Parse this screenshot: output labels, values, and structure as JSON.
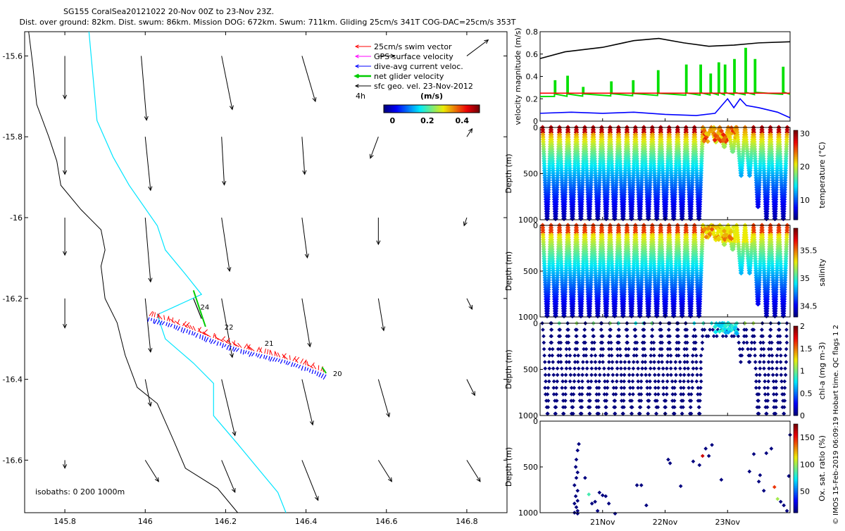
{
  "header": {
    "line1": "SG155 CoralSea20121022 20-Nov 00Z to 23-Nov 23Z.",
    "line2": "Dist. over ground: 82km. Dist. swum: 86km. Mission DOG: 672km. Swum: 711km. Gliding 25cm/s 341T COG-DAC=25cm/s 353T"
  },
  "credit": "© IMOS 15-Feb-2019 06:09:19 Hobart time. QC flags 1  2",
  "colors": {
    "swim": "#ff0000",
    "gps": "#ff00ff",
    "dac": "#0000ff",
    "net": "#00cc00",
    "geo": "#000000",
    "isobath200": "#00e5ff",
    "isobath1000": "#000000"
  },
  "chart_data": [
    {
      "type": "map",
      "name": "track-map",
      "xlim": [
        145.7,
        146.9
      ],
      "ylim": [
        -16.73,
        -15.54
      ],
      "xticks": [
        "145.8",
        "146",
        "146.2",
        "146.4",
        "146.6",
        "146.8"
      ],
      "xtick_values": [
        145.8,
        146.0,
        146.2,
        146.4,
        146.6,
        146.8
      ],
      "yticks": [
        "-15.6",
        "-15.8",
        "-16",
        "-16.2",
        "-16.4",
        "-16.6"
      ],
      "ytick_values": [
        -15.6,
        -15.8,
        -16.0,
        -16.2,
        -16.4,
        -16.6
      ],
      "legend": {
        "entries": [
          "25cm/s swim vector",
          "GPS surface velocity",
          "dive-avg current veloc.",
          "net glider velocity",
          "sfc geo. vel. 23-Nov-2012"
        ],
        "scale_label": "4h",
        "colorbar_title": "(m/s)",
        "colorbar_ticks": [
          "0",
          "0.2",
          "0.4"
        ],
        "colorbar_tick_values": [
          0,
          0.2,
          0.4
        ],
        "colorbar_range": [
          -0.05,
          0.5
        ]
      },
      "isobaths_label": "isobaths: 0   200  1000m",
      "track_labels": [
        {
          "text": "24",
          "lon": 146.13,
          "lat": -16.22
        },
        {
          "text": "22",
          "lon": 146.19,
          "lat": -16.27
        },
        {
          "text": "21",
          "lon": 146.29,
          "lat": -16.31
        },
        {
          "text": "20",
          "lon": 146.46,
          "lat": -16.385
        }
      ],
      "track_start": {
        "lon": 146.45,
        "lat": -16.385
      },
      "track_end": {
        "lon": 146.01,
        "lat": -16.245
      },
      "isobath_0": [
        [
          145.71,
          -15.54
        ],
        [
          145.72,
          -15.62
        ],
        [
          145.73,
          -15.72
        ],
        [
          145.76,
          -15.8
        ],
        [
          145.78,
          -15.86
        ],
        [
          145.79,
          -15.92
        ],
        [
          145.84,
          -15.98
        ],
        [
          145.89,
          -16.03
        ],
        [
          145.9,
          -16.08
        ],
        [
          145.89,
          -16.12
        ],
        [
          145.9,
          -16.2
        ],
        [
          145.93,
          -16.26
        ],
        [
          145.95,
          -16.34
        ],
        [
          145.98,
          -16.42
        ],
        [
          146.03,
          -16.46
        ],
        [
          146.07,
          -16.55
        ],
        [
          146.1,
          -16.62
        ],
        [
          146.18,
          -16.67
        ],
        [
          146.23,
          -16.73
        ]
      ],
      "isobath_200": [
        [
          145.86,
          -15.54
        ],
        [
          145.87,
          -15.65
        ],
        [
          145.88,
          -15.76
        ],
        [
          145.92,
          -15.85
        ],
        [
          145.96,
          -15.92
        ],
        [
          146.03,
          -16.02
        ],
        [
          146.05,
          -16.08
        ],
        [
          146.1,
          -16.14
        ],
        [
          146.14,
          -16.19
        ],
        [
          146.03,
          -16.24
        ],
        [
          146.05,
          -16.3
        ],
        [
          146.12,
          -16.36
        ],
        [
          146.17,
          -16.41
        ],
        [
          146.17,
          -16.49
        ],
        [
          146.23,
          -16.56
        ],
        [
          146.28,
          -16.62
        ],
        [
          146.33,
          -16.68
        ],
        [
          146.35,
          -16.73
        ]
      ],
      "geo_vectors": [
        {
          "lon": 145.8,
          "lat": -15.6,
          "u": 0.0,
          "v": -0.16
        },
        {
          "lon": 145.99,
          "lat": -15.6,
          "u": 0.02,
          "v": -0.24
        },
        {
          "lon": 146.19,
          "lat": -15.6,
          "u": 0.04,
          "v": -0.2
        },
        {
          "lon": 146.39,
          "lat": -15.6,
          "u": 0.05,
          "v": -0.17
        },
        {
          "lon": 146.58,
          "lat": -15.6,
          "u": 0.06,
          "v": 0.0
        },
        {
          "lon": 146.8,
          "lat": -15.6,
          "u": 0.08,
          "v": 0.06
        },
        {
          "lon": 145.8,
          "lat": -15.8,
          "u": 0.0,
          "v": -0.14
        },
        {
          "lon": 146.0,
          "lat": -15.8,
          "u": 0.02,
          "v": -0.2
        },
        {
          "lon": 146.19,
          "lat": -15.8,
          "u": 0.01,
          "v": -0.18
        },
        {
          "lon": 146.39,
          "lat": -15.8,
          "u": 0.01,
          "v": -0.14
        },
        {
          "lon": 146.58,
          "lat": -15.8,
          "u": -0.03,
          "v": -0.08
        },
        {
          "lon": 146.8,
          "lat": -15.8,
          "u": 0.02,
          "v": 0.03
        },
        {
          "lon": 145.8,
          "lat": -16.0,
          "u": 0.0,
          "v": -0.14
        },
        {
          "lon": 146.0,
          "lat": -16.0,
          "u": 0.02,
          "v": -0.24
        },
        {
          "lon": 146.19,
          "lat": -16.0,
          "u": 0.03,
          "v": -0.2
        },
        {
          "lon": 146.39,
          "lat": -16.0,
          "u": 0.02,
          "v": -0.15
        },
        {
          "lon": 146.58,
          "lat": -16.0,
          "u": 0.0,
          "v": -0.1
        },
        {
          "lon": 146.8,
          "lat": -16.0,
          "u": -0.01,
          "v": -0.03
        },
        {
          "lon": 145.8,
          "lat": -16.2,
          "u": 0.0,
          "v": -0.11
        },
        {
          "lon": 146.0,
          "lat": -16.2,
          "u": 0.02,
          "v": -0.2
        },
        {
          "lon": 146.19,
          "lat": -16.2,
          "u": 0.04,
          "v": -0.22
        },
        {
          "lon": 146.39,
          "lat": -16.2,
          "u": 0.03,
          "v": -0.18
        },
        {
          "lon": 146.58,
          "lat": -16.2,
          "u": 0.02,
          "v": -0.12
        },
        {
          "lon": 146.8,
          "lat": -16.2,
          "u": 0.02,
          "v": -0.04
        },
        {
          "lon": 146.0,
          "lat": -16.4,
          "u": 0.02,
          "v": -0.1
        },
        {
          "lon": 146.19,
          "lat": -16.4,
          "u": 0.05,
          "v": -0.21
        },
        {
          "lon": 146.39,
          "lat": -16.4,
          "u": 0.04,
          "v": -0.17
        },
        {
          "lon": 146.58,
          "lat": -16.4,
          "u": 0.04,
          "v": -0.14
        },
        {
          "lon": 146.8,
          "lat": -16.4,
          "u": 0.03,
          "v": -0.06
        },
        {
          "lon": 145.8,
          "lat": -16.6,
          "u": 0.0,
          "v": -0.03
        },
        {
          "lon": 146.0,
          "lat": -16.6,
          "u": 0.05,
          "v": -0.08
        },
        {
          "lon": 146.19,
          "lat": -16.6,
          "u": 0.05,
          "v": -0.12
        },
        {
          "lon": 146.39,
          "lat": -16.6,
          "u": 0.06,
          "v": -0.15
        },
        {
          "lon": 146.58,
          "lat": -16.6,
          "u": 0.05,
          "v": -0.08
        },
        {
          "lon": 146.8,
          "lat": -16.6,
          "u": 0.05,
          "v": -0.08
        }
      ]
    },
    {
      "type": "line",
      "name": "velocity-panel",
      "ylabel": "velocity magnitude (m/s)",
      "xlim": [
        20.0,
        24.0
      ],
      "ylim": [
        0,
        0.8
      ],
      "yticks": [
        "0",
        "0.2",
        "0.4",
        "0.6",
        "0.8"
      ],
      "ytick_values": [
        0,
        0.2,
        0.4,
        0.6,
        0.8
      ],
      "xticks": [
        "21Nov",
        "22Nov",
        "23Nov"
      ],
      "xtick_values": [
        21.0,
        22.0,
        23.0
      ],
      "series": [
        {
          "color": "#000000",
          "x": [
            20.0,
            20.4,
            21.0,
            21.5,
            21.9,
            22.3,
            22.7,
            23.1,
            23.5,
            24.0
          ],
          "values": [
            0.56,
            0.62,
            0.66,
            0.72,
            0.74,
            0.7,
            0.67,
            0.68,
            0.7,
            0.71
          ]
        },
        {
          "color": "#ff0000",
          "x": [
            20.0,
            24.0
          ],
          "values": [
            0.25,
            0.25
          ]
        },
        {
          "color": "#0000ff",
          "x": [
            20.0,
            20.5,
            21.0,
            21.5,
            22.0,
            22.5,
            22.8,
            23.0,
            23.1,
            23.2,
            23.3,
            23.5,
            23.8,
            24.0
          ],
          "values": [
            0.07,
            0.08,
            0.07,
            0.08,
            0.06,
            0.05,
            0.07,
            0.2,
            0.12,
            0.2,
            0.14,
            0.12,
            0.08,
            0.03
          ]
        }
      ],
      "net_velocity": {
        "color": "#00e000",
        "base_x": [
          20.0,
          24.0
        ],
        "base_values": [
          0.22,
          0.24
        ],
        "spikes": [
          {
            "x": 20.25,
            "v": 0.36
          },
          {
            "x": 20.45,
            "v": 0.4
          },
          {
            "x": 20.7,
            "v": 0.3
          },
          {
            "x": 21.15,
            "v": 0.35
          },
          {
            "x": 21.5,
            "v": 0.36
          },
          {
            "x": 21.9,
            "v": 0.45
          },
          {
            "x": 22.35,
            "v": 0.5
          },
          {
            "x": 22.58,
            "v": 0.5
          },
          {
            "x": 22.74,
            "v": 0.42
          },
          {
            "x": 22.87,
            "v": 0.52
          },
          {
            "x": 22.97,
            "v": 0.5
          },
          {
            "x": 23.12,
            "v": 0.55
          },
          {
            "x": 23.3,
            "v": 0.65
          },
          {
            "x": 23.45,
            "v": 0.55
          },
          {
            "x": 23.9,
            "v": 0.48
          }
        ]
      }
    },
    {
      "type": "scatter",
      "name": "temperature-section",
      "ylabel": "Depth (m)",
      "cbar_label": "temperature (°C)",
      "cbar_ticks": [
        "10",
        "20",
        "30"
      ],
      "cbar_tick_values": [
        10,
        20,
        30
      ],
      "vrange": [
        4,
        31
      ],
      "xlim": [
        20.0,
        24.0
      ],
      "ylim": [
        1000,
        0
      ],
      "yticks": [
        "0",
        "500",
        "1000"
      ],
      "ytick_values": [
        0,
        500,
        1000
      ],
      "dives": 29,
      "surface_value": 29,
      "deep_value": 5
    },
    {
      "type": "scatter",
      "name": "salinity-section",
      "ylabel": "Depth (m)",
      "cbar_label": "salinity",
      "cbar_ticks": [
        "34.5",
        "35",
        "35.5"
      ],
      "cbar_tick_values": [
        34.5,
        35.0,
        35.5
      ],
      "vrange": [
        34.3,
        35.9
      ],
      "xlim": [
        20.0,
        24.0
      ],
      "ylim": [
        1000,
        0
      ],
      "yticks": [
        "0",
        "500",
        "1000"
      ],
      "ytick_values": [
        0,
        500,
        1000
      ],
      "dives": 29,
      "surface_value": 35.6,
      "deep_value": 34.4
    },
    {
      "type": "scatter",
      "name": "chla-section",
      "ylabel": "Depth (m)",
      "cbar_label": "chl-a (mg m-3)",
      "cbar_ticks": [
        "0",
        "0.5",
        "1",
        "1.5",
        "2"
      ],
      "cbar_tick_values": [
        0,
        0.5,
        1,
        1.5,
        2
      ],
      "vrange": [
        0,
        2
      ],
      "xlim": [
        20.0,
        24.0
      ],
      "ylim": [
        1000,
        0
      ],
      "yticks": [
        "0",
        "500",
        "1000"
      ],
      "ytick_values": [
        0,
        500,
        1000
      ],
      "dives": 29
    },
    {
      "type": "scatter",
      "name": "oxygen-section",
      "ylabel": "Depth (m)",
      "cbar_label": "Ox. sat. ratio (%)",
      "cbar_ticks": [
        "50",
        "100",
        "150"
      ],
      "cbar_tick_values": [
        50,
        100,
        150
      ],
      "vrange": [
        10,
        175
      ],
      "xlim": [
        20.0,
        24.0
      ],
      "ylim": [
        1000,
        0
      ],
      "yticks": [
        "0",
        "500",
        "1000"
      ],
      "ytick_values": [
        0,
        500,
        1000
      ],
      "xticks": [
        "21Nov",
        "22Nov",
        "23Nov"
      ],
      "xtick_values": [
        21.0,
        22.0,
        23.0
      ],
      "points": [
        [
          20.62,
          250
        ],
        [
          20.6,
          320
        ],
        [
          20.58,
          420
        ],
        [
          20.57,
          500
        ],
        [
          20.6,
          560
        ],
        [
          20.58,
          620
        ],
        [
          20.55,
          700
        ],
        [
          20.6,
          760
        ],
        [
          20.57,
          820
        ],
        [
          20.6,
          870
        ],
        [
          20.55,
          900
        ],
        [
          20.58,
          940
        ],
        [
          20.6,
          980
        ],
        [
          20.55,
          1000
        ],
        [
          20.6,
          1010
        ],
        [
          20.72,
          620
        ],
        [
          20.78,
          800
        ],
        [
          20.83,
          900
        ],
        [
          20.88,
          880
        ],
        [
          20.95,
          780
        ],
        [
          20.92,
          980
        ],
        [
          21.0,
          810
        ],
        [
          21.05,
          820
        ],
        [
          21.1,
          900
        ],
        [
          21.2,
          1010
        ],
        [
          21.55,
          700
        ],
        [
          21.62,
          700
        ],
        [
          21.7,
          920
        ],
        [
          22.05,
          420
        ],
        [
          22.08,
          460
        ],
        [
          22.25,
          710
        ],
        [
          22.45,
          440
        ],
        [
          22.55,
          480
        ],
        [
          22.6,
          380
        ],
        [
          22.65,
          300
        ],
        [
          22.7,
          380
        ],
        [
          22.75,
          260
        ],
        [
          22.9,
          640
        ],
        [
          23.35,
          550
        ],
        [
          23.42,
          360
        ],
        [
          23.5,
          660
        ],
        [
          23.52,
          590
        ],
        [
          23.62,
          350
        ],
        [
          23.7,
          300
        ],
        [
          23.75,
          720
        ],
        [
          23.8,
          850
        ],
        [
          23.85,
          880
        ],
        [
          23.9,
          920
        ],
        [
          23.95,
          980
        ],
        [
          24.0,
          150
        ],
        [
          23.98,
          600
        ],
        [
          23.58,
          760
        ]
      ]
    }
  ]
}
